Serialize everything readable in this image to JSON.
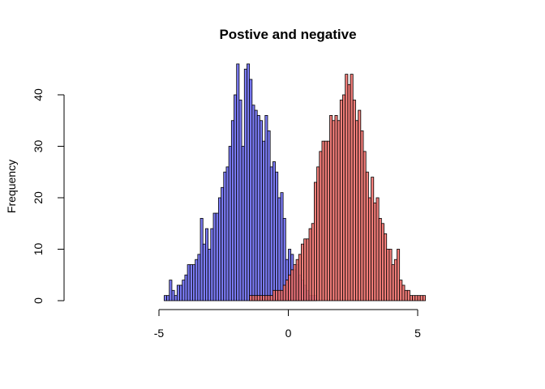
{
  "chart_data": {
    "type": "histogram",
    "title": "Postive and negative",
    "xlabel": "",
    "ylabel": "Frequency",
    "xlim": [
      -5,
      5
    ],
    "ylim": [
      0,
      45
    ],
    "x_ticks": [
      -5,
      0,
      5
    ],
    "y_ticks": [
      0,
      10,
      20,
      30,
      40
    ],
    "bin_width": 0.1,
    "grid": false,
    "legend": "none",
    "series": [
      {
        "color": "#7b7bf5",
        "bin_start": -4.8,
        "counts": [
          1,
          1,
          4,
          2,
          1,
          3,
          3,
          4,
          5,
          7,
          7,
          7,
          8,
          9,
          16,
          11,
          14,
          10,
          14,
          17,
          17,
          20,
          22,
          25,
          26,
          30,
          35,
          40,
          46,
          39,
          30,
          45,
          46,
          43,
          38,
          37,
          36,
          35,
          31,
          36,
          33,
          26,
          27,
          25,
          20,
          21,
          16,
          8,
          10,
          9,
          6,
          7,
          5,
          4,
          3,
          2,
          1,
          1,
          1
        ]
      },
      {
        "color": "#f2706b",
        "bin_start": -1.5,
        "counts": [
          1,
          1,
          1,
          1,
          1,
          1,
          1,
          1,
          1,
          2,
          2,
          2,
          2,
          3,
          4,
          5,
          6,
          7,
          8,
          9,
          11,
          12,
          12,
          14,
          15,
          23,
          26,
          29,
          31,
          31,
          31,
          36,
          35,
          36,
          35,
          39,
          40,
          44,
          42,
          44,
          39,
          35,
          37,
          33,
          29,
          25,
          20,
          24,
          19,
          20,
          16,
          15,
          13,
          10,
          10,
          7,
          8,
          10,
          4,
          3,
          2,
          2,
          1,
          1,
          1,
          1,
          1,
          1
        ]
      }
    ]
  }
}
